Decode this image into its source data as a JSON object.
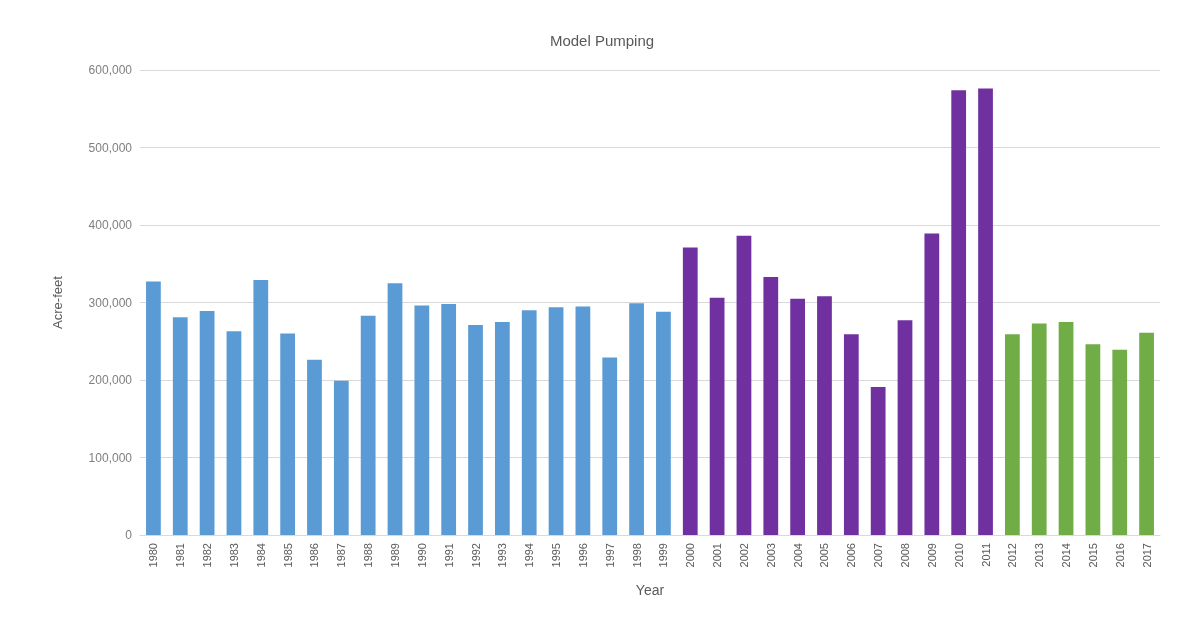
{
  "chart_data": {
    "type": "bar",
    "title": "Model Pumping",
    "xlabel": "Year",
    "ylabel": "Acre-feet",
    "categories": [
      "1980",
      "1981",
      "1982",
      "1983",
      "1984",
      "1985",
      "1986",
      "1987",
      "1988",
      "1989",
      "1990",
      "1991",
      "1992",
      "1993",
      "1994",
      "1995",
      "1996",
      "1997",
      "1998",
      "1999",
      "2000",
      "2001",
      "2002",
      "2003",
      "2004",
      "2005",
      "2006",
      "2007",
      "2008",
      "2009",
      "2010",
      "2011",
      "2012",
      "2013",
      "2014",
      "2015",
      "2016",
      "2017"
    ],
    "values": [
      327000,
      281000,
      289000,
      263000,
      329000,
      260000,
      226000,
      199000,
      283000,
      325000,
      296000,
      298000,
      271000,
      275000,
      290000,
      294000,
      295000,
      229000,
      299000,
      288000,
      371000,
      306000,
      386000,
      333000,
      305000,
      308000,
      259000,
      191000,
      277000,
      389000,
      574000,
      576000,
      259000,
      273000,
      275000,
      246000,
      239000,
      261000
    ],
    "colors": [
      "#5b9bd5",
      "#5b9bd5",
      "#5b9bd5",
      "#5b9bd5",
      "#5b9bd5",
      "#5b9bd5",
      "#5b9bd5",
      "#5b9bd5",
      "#5b9bd5",
      "#5b9bd5",
      "#5b9bd5",
      "#5b9bd5",
      "#5b9bd5",
      "#5b9bd5",
      "#5b9bd5",
      "#5b9bd5",
      "#5b9bd5",
      "#5b9bd5",
      "#5b9bd5",
      "#5b9bd5",
      "#7030a0",
      "#7030a0",
      "#7030a0",
      "#7030a0",
      "#7030a0",
      "#7030a0",
      "#7030a0",
      "#7030a0",
      "#7030a0",
      "#7030a0",
      "#7030a0",
      "#7030a0",
      "#70ad47",
      "#70ad47",
      "#70ad47",
      "#70ad47",
      "#70ad47",
      "#70ad47"
    ],
    "ylim": [
      0,
      600000
    ],
    "yticks": [
      0,
      {
        "value": 100000,
        "label": "100,000"
      },
      {
        "value": 200000,
        "label": "200,000"
      },
      {
        "value": 300000,
        "label": "300,000"
      },
      {
        "value": 400000,
        "label": "400,000"
      },
      {
        "value": 500000,
        "label": "500,000"
      },
      {
        "value": 600000,
        "label": "600,000"
      }
    ],
    "grid": "y"
  }
}
